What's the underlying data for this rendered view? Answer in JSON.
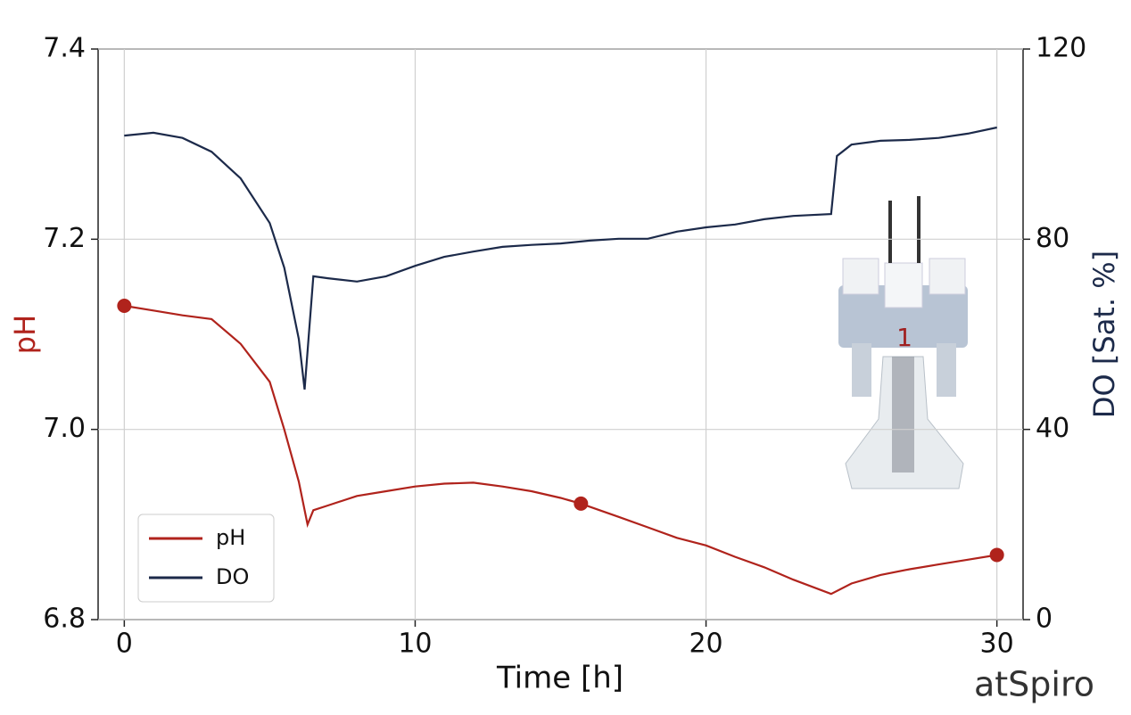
{
  "chart_data": {
    "type": "line",
    "xlabel": "Time [h]",
    "ylabel": "pH",
    "y2label": "DO [Sat. %]",
    "xlim": [
      -0.9,
      30.9
    ],
    "xticks": [
      0,
      10,
      20,
      30
    ],
    "ylim": [
      6.8,
      7.4
    ],
    "yticks": [
      6.8,
      {
        "value": 7,
        "label": "7.0"
      },
      7.2,
      7.4
    ],
    "y2lim": [
      0,
      120
    ],
    "y2ticks": [
      0,
      40,
      80,
      120
    ],
    "grid": true,
    "legend": "lower left",
    "logo": "atSpiro",
    "series": [
      {
        "name": "pH",
        "color": "#b0231c",
        "x": [
          0,
          1,
          2,
          3,
          4,
          5,
          5.5,
          6,
          6.3,
          6.5,
          7,
          8,
          9,
          10,
          11,
          12,
          13,
          14,
          15,
          15.7,
          17,
          18,
          19,
          20,
          21,
          22,
          23,
          24.3,
          25,
          26,
          27,
          28,
          29,
          30
        ],
        "values": [
          7.13,
          7.125,
          7.12,
          7.116,
          7.09,
          7.05,
          7.0,
          6.945,
          6.9,
          6.915,
          6.92,
          6.93,
          6.935,
          6.94,
          6.943,
          6.944,
          6.94,
          6.935,
          6.928,
          6.922,
          6.908,
          6.897,
          6.886,
          6.878,
          6.866,
          6.855,
          6.842,
          6.827,
          6.838,
          6.847,
          6.853,
          6.858,
          6.863,
          6.868
        ],
        "markers": {
          "x": [
            0,
            15.7,
            30
          ],
          "values": [
            7.13,
            6.922,
            6.868
          ]
        }
      },
      {
        "name": "DO",
        "color": "#1c2a4a",
        "axis": "y2",
        "x": [
          0,
          1,
          2,
          3,
          4,
          5,
          5.5,
          6,
          6.2,
          6.5,
          7,
          8,
          9,
          10,
          11,
          12,
          13,
          14,
          15,
          16,
          17,
          18,
          19,
          20,
          21,
          22,
          23,
          24.3,
          24.5,
          25,
          26,
          27,
          28,
          29,
          30
        ],
        "values": [
          101.8,
          102.4,
          101.3,
          98.4,
          92.8,
          83.4,
          74,
          59,
          48.4,
          72.2,
          71.8,
          71.1,
          72.2,
          74.4,
          76.3,
          77.4,
          78.4,
          78.8,
          79.1,
          79.7,
          80.1,
          80.1,
          81.6,
          82.5,
          83.1,
          84.2,
          84.9,
          85.3,
          97.5,
          99.9,
          100.7,
          100.9,
          101.3,
          102.2,
          103.5
        ]
      }
    ]
  }
}
